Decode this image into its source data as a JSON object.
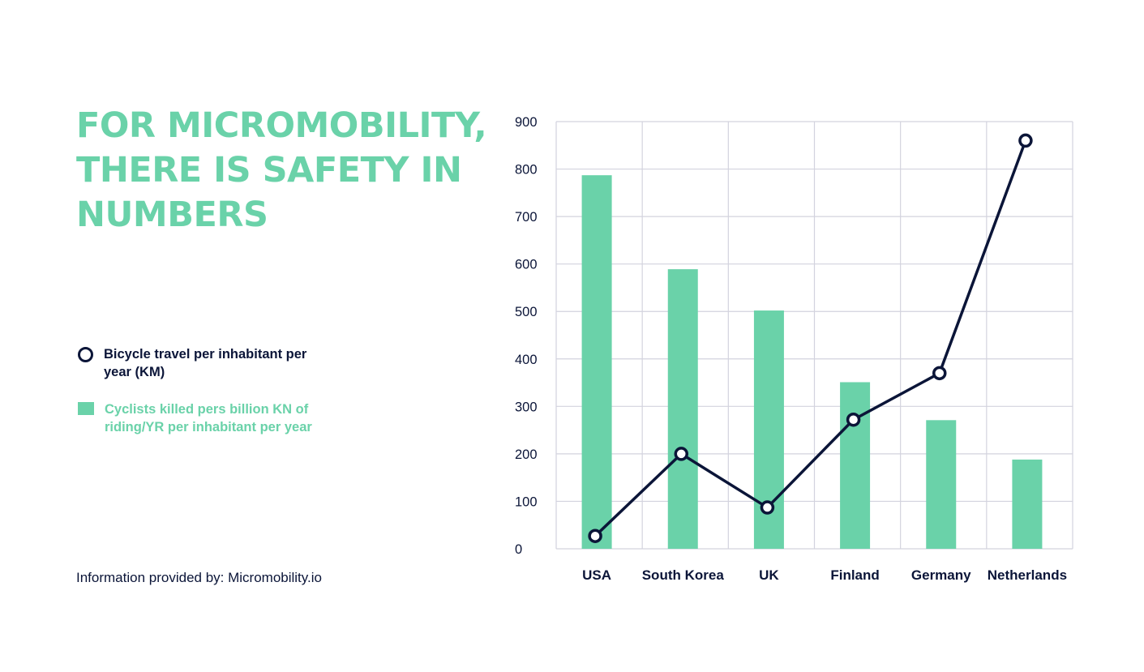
{
  "title": "FOR MICROMOBILITY, THERE IS SAFETY IN NUMBERS",
  "legend": {
    "line_label": "Bicycle travel per inhabitant per year (KM)",
    "bar_label": "Cyclists killed pers billion KN of riding/YR per inhabitant per year"
  },
  "source": "Information provided by: Micromobility.io",
  "colors": {
    "accent": "#6AD2A9",
    "dark": "#0B1538",
    "grid": "#D3D3DE"
  },
  "chart_data": {
    "type": "bar",
    "categories": [
      "USA",
      "South Korea",
      "UK",
      "Finland",
      "Germany",
      "Netherlands"
    ],
    "ylim": [
      0,
      900
    ],
    "yticks": [
      0,
      100,
      200,
      300,
      400,
      500,
      600,
      700,
      800,
      900
    ],
    "grid": true,
    "legend_position": "left",
    "series": [
      {
        "name": "Cyclists killed pers billion KN of riding/YR per inhabitant per year",
        "type": "bar",
        "color": "#6AD2A9",
        "values": [
          787,
          589,
          502,
          351,
          271,
          188
        ]
      },
      {
        "name": "Bicycle travel per inhabitant per year (KM)",
        "type": "line",
        "color": "#0B1538",
        "values": [
          27,
          200,
          87,
          272,
          370,
          860
        ]
      }
    ]
  }
}
